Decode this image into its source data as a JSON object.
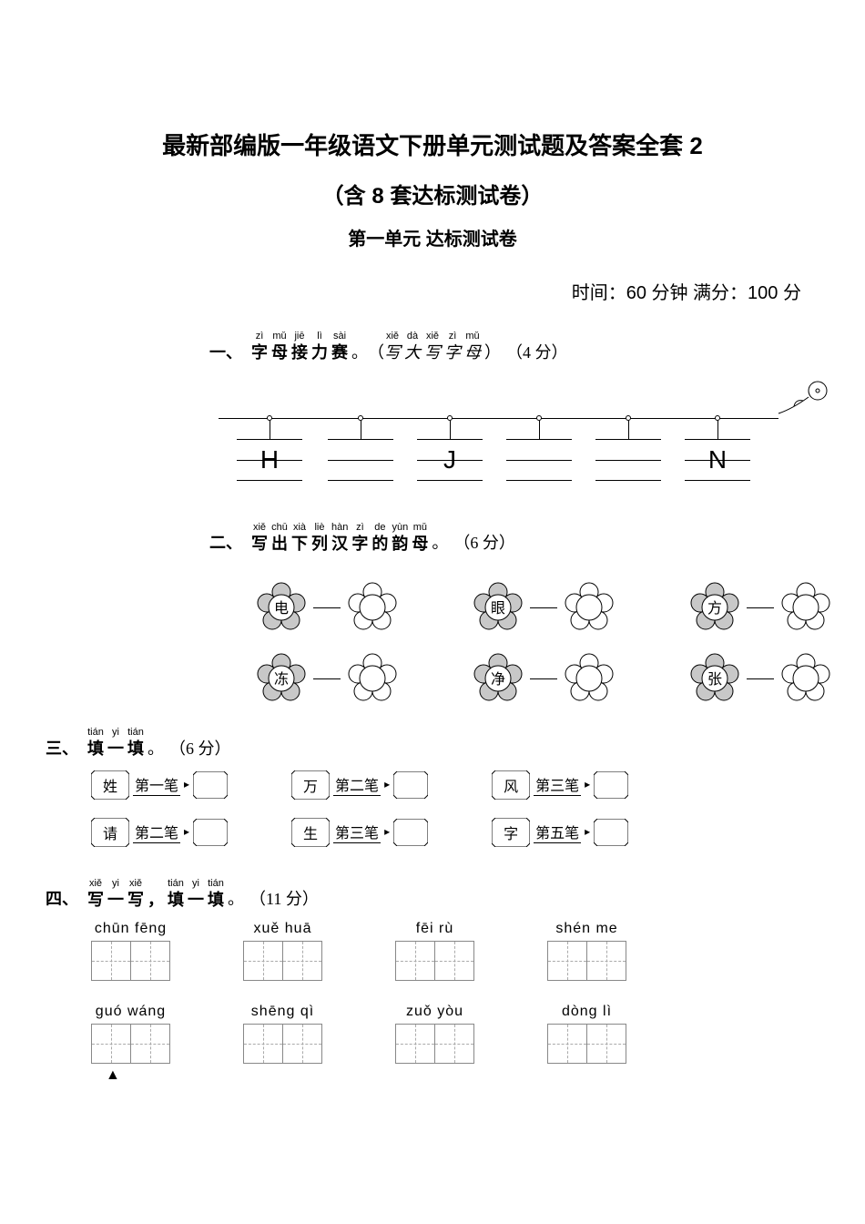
{
  "titles": {
    "main": "最新部编版一年级语文下册单元测试题及答案全套 2",
    "sub": "（含 8 套达标测试卷）",
    "unit": "第一单元  达标测试卷"
  },
  "timeScore": "时间：60 分钟 满分：100 分",
  "q1": {
    "num": "一、",
    "pinyin": [
      "zì",
      "mǔ",
      "jiē",
      "lì",
      "sài"
    ],
    "hanzi": [
      "字",
      "母",
      "接",
      "力",
      "赛"
    ],
    "period": "。",
    "note_py": [
      "xiě",
      "dà",
      "xiě",
      "zì",
      "mǔ"
    ],
    "note_hz": [
      "写",
      "大",
      "写",
      "字",
      "母"
    ],
    "points": "（4 分）",
    "letters": [
      "H",
      "",
      "J",
      "",
      "",
      "N"
    ],
    "positions": [
      20,
      120,
      218,
      316,
      414,
      512
    ]
  },
  "q2": {
    "num": "二、",
    "pinyin": [
      "xiě",
      "chū",
      "xià",
      "liè",
      "hàn",
      "zì",
      "de",
      "yùn",
      "mǔ"
    ],
    "hanzi": [
      "写",
      "出",
      "下",
      "列",
      "汉",
      "字",
      "的",
      "韵",
      "母"
    ],
    "period": "。",
    "points": "（6 分）",
    "row1": [
      "电",
      "眼",
      "方"
    ],
    "row2": [
      "冻",
      "净",
      "张"
    ]
  },
  "q3": {
    "num": "三、",
    "pinyin": [
      "tián",
      "yi",
      "tián"
    ],
    "hanzi": [
      "填",
      "一",
      "填"
    ],
    "period": "。",
    "points": "（6 分）",
    "row1": [
      {
        "char": "姓",
        "label": "第一笔"
      },
      {
        "char": "万",
        "label": "第二笔"
      },
      {
        "char": "风",
        "label": "第三笔"
      }
    ],
    "row2": [
      {
        "char": "请",
        "label": "第二笔"
      },
      {
        "char": "生",
        "label": "第三笔"
      },
      {
        "char": "字",
        "label": "第五笔"
      }
    ]
  },
  "q4": {
    "num": "四、",
    "pinyin1": [
      "xiě",
      "yi",
      "xiě"
    ],
    "hanzi1": [
      "写",
      "一",
      "写"
    ],
    "comma": "，",
    "pinyin2": [
      "tián",
      "yi",
      "tián"
    ],
    "hanzi2": [
      "填",
      "一",
      "填"
    ],
    "period": "。",
    "points": "（11 分）",
    "row1": [
      "chūn fēng",
      "xuě  huā",
      "fēi   rù",
      "shén  me"
    ],
    "row2": [
      "guó wáng",
      "shēng  qì",
      "zuǒ  yòu",
      "dòng   lì"
    ],
    "triangle": "▲"
  },
  "colors": {
    "text": "#000000",
    "bg": "#ffffff",
    "flower_fill": "#c8c8c8",
    "line": "#000000",
    "grid": "#888888",
    "dash": "#aaaaaa"
  }
}
